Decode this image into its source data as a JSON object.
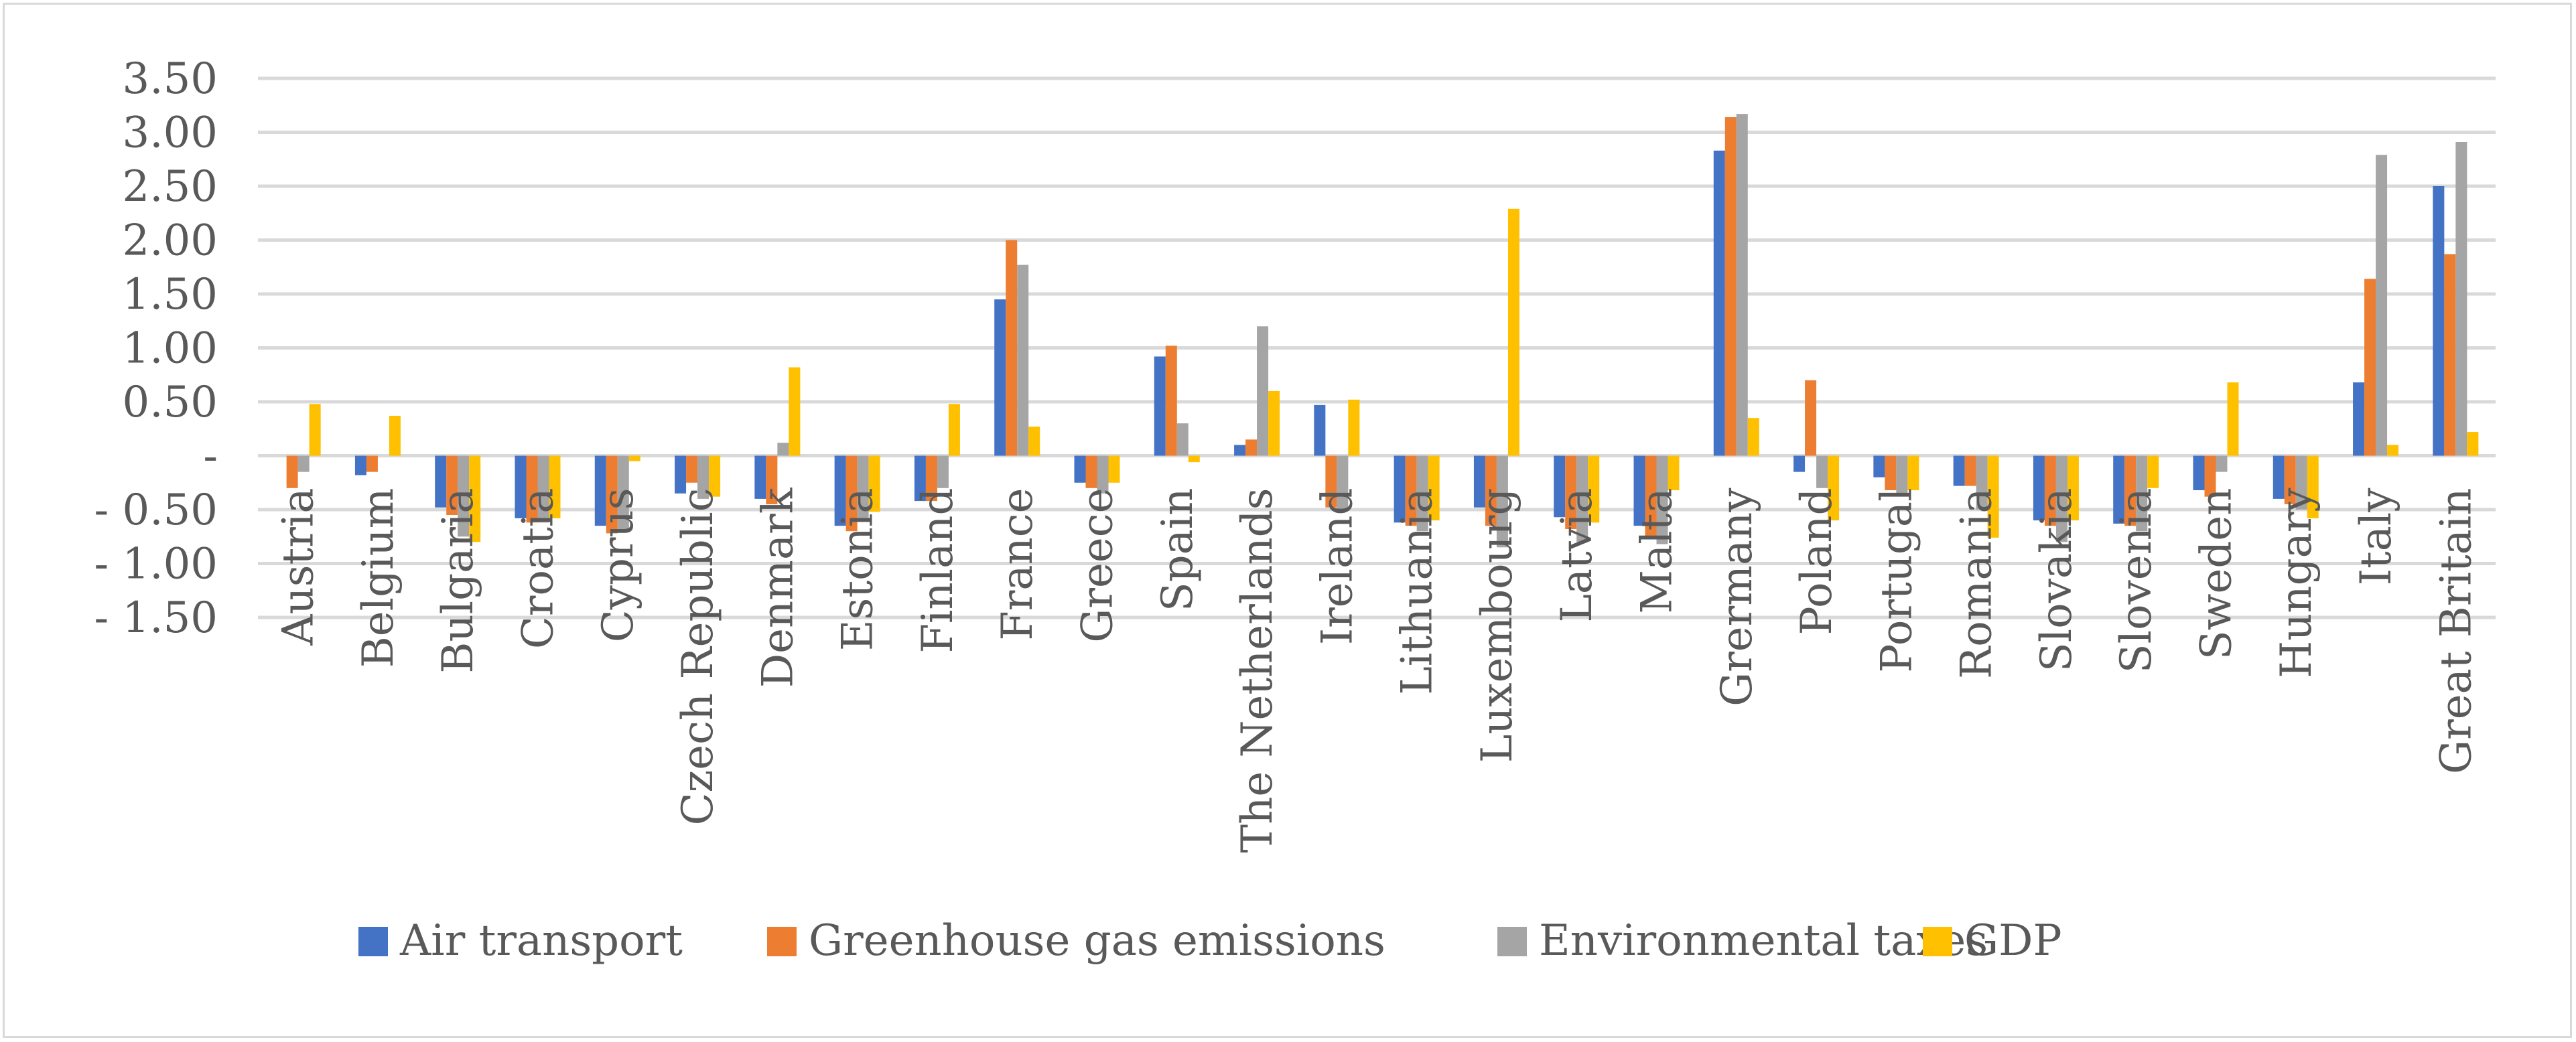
{
  "chart_data": {
    "type": "bar",
    "title": "",
    "xlabel": "",
    "ylabel": "",
    "ylim": [
      -1.5,
      3.5
    ],
    "ytick_values": [
      3.5,
      3.0,
      2.5,
      2.0,
      1.5,
      1.0,
      0.5,
      0,
      -0.5,
      -1.0,
      -1.5
    ],
    "ytick_labels": [
      "3.50",
      "3.00",
      "2.50",
      "2.00",
      "1.50",
      "1.00",
      "0.50",
      "-",
      "- 0.50",
      "- 1.00",
      "- 1.50"
    ],
    "grid": true,
    "legend_position": "bottom",
    "categories": [
      "Austria",
      "Belgium",
      "Bulgaria",
      "Croatia",
      "Cyprus",
      "Czech Republic",
      "Denmark",
      "Estonia",
      "Finland",
      "France",
      "Greece",
      "Spain",
      "The Netherlands",
      "Ireland",
      "Lithuania",
      "Luxembourg",
      "Latvia",
      "Malta",
      "Grermany",
      "Poland",
      "Portugal",
      "Romania",
      "Slovakia",
      "Slovenia",
      "Sweden",
      "Hungary",
      "Italy",
      "Great Britain"
    ],
    "series": [
      {
        "name": "Air transport",
        "color": "#4472c4",
        "values": [
          0.0,
          -0.18,
          -0.48,
          -0.58,
          -0.65,
          -0.35,
          -0.4,
          -0.65,
          -0.42,
          1.45,
          -0.25,
          0.92,
          0.1,
          0.47,
          -0.62,
          -0.48,
          -0.57,
          -0.65,
          2.83,
          -0.15,
          -0.2,
          -0.28,
          -0.6,
          -0.63,
          -0.32,
          -0.4,
          0.68,
          2.5
        ]
      },
      {
        "name": "Greenhouse gas emissions",
        "color": "#ed7d31",
        "values": [
          -0.3,
          -0.15,
          -0.55,
          -0.62,
          -0.72,
          -0.25,
          -0.45,
          -0.7,
          -0.42,
          2.0,
          -0.3,
          1.02,
          0.15,
          -0.48,
          -0.65,
          -0.65,
          -0.68,
          -0.75,
          3.14,
          0.7,
          -0.32,
          -0.28,
          -0.65,
          -0.65,
          -0.38,
          -0.45,
          1.64,
          1.87
        ]
      },
      {
        "name": "Environmental taxes",
        "color": "#a5a5a5",
        "values": [
          -0.15,
          0.0,
          -0.75,
          -0.62,
          -0.68,
          -0.4,
          0.12,
          -0.6,
          -0.3,
          1.77,
          -0.35,
          0.3,
          1.2,
          -0.5,
          -0.7,
          -0.85,
          -0.8,
          -0.82,
          3.17,
          -0.3,
          -0.35,
          -0.5,
          -0.8,
          -0.7,
          -0.15,
          -0.5,
          2.79,
          2.91
        ]
      },
      {
        "name": "GDP",
        "color": "#ffc000",
        "values": [
          0.48,
          0.37,
          -0.8,
          -0.58,
          -0.05,
          -0.38,
          0.82,
          -0.52,
          0.48,
          0.27,
          -0.25,
          -0.06,
          0.6,
          0.52,
          -0.6,
          2.29,
          -0.62,
          -0.32,
          0.35,
          -0.6,
          -0.32,
          -0.76,
          -0.6,
          -0.3,
          0.68,
          -0.58,
          0.1,
          0.22
        ]
      }
    ]
  }
}
